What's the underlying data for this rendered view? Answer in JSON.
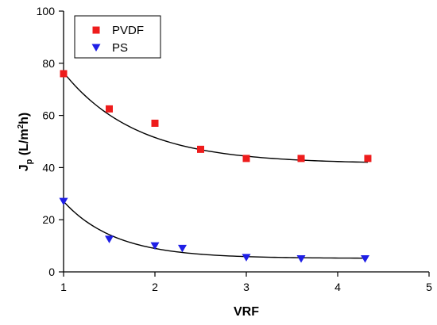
{
  "chart_data": {
    "type": "scatter",
    "xlabel": "VRF",
    "ylabel": {
      "main": "J",
      "sub": "p",
      "units_a": " (L/m",
      "units_sup": "2",
      "units_b": "h)"
    },
    "xlim": [
      1,
      5
    ],
    "ylim": [
      0,
      100
    ],
    "x_ticks": [
      "1",
      "2",
      "3",
      "4",
      "5"
    ],
    "y_ticks": [
      "0",
      "20",
      "40",
      "60",
      "80",
      "100"
    ],
    "legend": {
      "placement": "top-left"
    },
    "series": [
      {
        "name": "PVDF",
        "marker": "square",
        "color": "#ee1c1c",
        "x": [
          1.0,
          1.5,
          2.0,
          2.5,
          3.0,
          3.6,
          4.33
        ],
        "y": [
          76,
          62.5,
          57,
          47,
          43.5,
          43.5,
          43.5
        ],
        "fit": {
          "asymptote": 41.5,
          "amplitude": 35.0,
          "rate": 1.25,
          "x_start": 1.0,
          "x_end": 4.33
        }
      },
      {
        "name": "PS",
        "marker": "triangle-down",
        "color": "#1f1fe6",
        "x": [
          1.0,
          1.5,
          2.0,
          2.3,
          3.0,
          3.6,
          4.3
        ],
        "y": [
          27,
          12.5,
          10,
          9,
          5.5,
          5,
          5
        ],
        "fit": {
          "asymptote": 5.2,
          "amplitude": 21.8,
          "rate": 1.75,
          "x_start": 1.0,
          "x_end": 4.3
        }
      }
    ]
  }
}
